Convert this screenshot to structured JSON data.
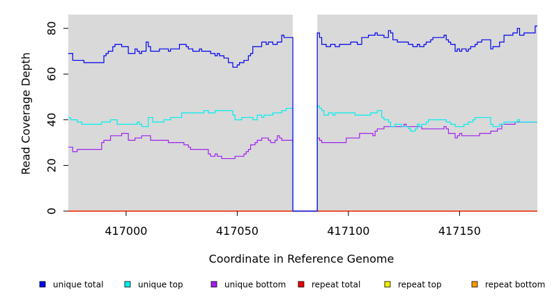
{
  "chart_data": {
    "type": "line",
    "title": "",
    "xlabel": "Coordinate in Reference Genome",
    "ylabel": "Read Coverage Depth",
    "xlim": [
      416974,
      417185
    ],
    "ylim": [
      0,
      86
    ],
    "xticks": [
      417000,
      417050,
      417100,
      417150
    ],
    "yticks": [
      0,
      20,
      40,
      60,
      80
    ],
    "x_tick_labels": [
      "417000",
      "417050",
      "417100",
      "417150"
    ],
    "y_tick_labels": [
      "0",
      "20",
      "40",
      "60",
      "80"
    ],
    "gap": [
      417075,
      417086
    ],
    "grid": false,
    "legend_position": "bottom",
    "background": "#d9d9d9",
    "series": [
      {
        "name": "unique total",
        "color": "#0000ee",
        "points": [
          [
            416974,
            69
          ],
          [
            416976,
            66
          ],
          [
            416981,
            65
          ],
          [
            416990,
            68
          ],
          [
            416991,
            69
          ],
          [
            416992,
            70
          ],
          [
            416994,
            72
          ],
          [
            416995,
            73
          ],
          [
            416998,
            72
          ],
          [
            417001,
            69
          ],
          [
            417004,
            71
          ],
          [
            417005,
            70
          ],
          [
            417006,
            69
          ],
          [
            417007,
            70
          ],
          [
            417009,
            74
          ],
          [
            417010,
            72
          ],
          [
            417011,
            70
          ],
          [
            417015,
            71
          ],
          [
            417019,
            70
          ],
          [
            417020,
            71
          ],
          [
            417024,
            73
          ],
          [
            417027,
            72
          ],
          [
            417028,
            71
          ],
          [
            417030,
            70
          ],
          [
            417033,
            71
          ],
          [
            417034,
            70
          ],
          [
            417038,
            69
          ],
          [
            417040,
            68
          ],
          [
            417041,
            69
          ],
          [
            417042,
            68
          ],
          [
            417044,
            67
          ],
          [
            417046,
            65
          ],
          [
            417048,
            63
          ],
          [
            417050,
            64
          ],
          [
            417051,
            65
          ],
          [
            417053,
            66
          ],
          [
            417055,
            68
          ],
          [
            417056,
            69
          ],
          [
            417057,
            72
          ],
          [
            417061,
            74
          ],
          [
            417063,
            73
          ],
          [
            417064,
            74
          ],
          [
            417066,
            73
          ],
          [
            417068,
            74
          ],
          [
            417070,
            77
          ],
          [
            417071,
            76
          ],
          [
            417072,
            76
          ],
          [
            417075,
            0
          ],
          [
            417086,
            78
          ],
          [
            417087,
            76
          ],
          [
            417088,
            73
          ],
          [
            417090,
            72
          ],
          [
            417092,
            73
          ],
          [
            417094,
            72
          ],
          [
            417096,
            73
          ],
          [
            417101,
            74
          ],
          [
            417104,
            73
          ],
          [
            417106,
            76
          ],
          [
            417109,
            77
          ],
          [
            417112,
            78
          ],
          [
            417113,
            77
          ],
          [
            417115,
            77
          ],
          [
            417116,
            76
          ],
          [
            417118,
            79
          ],
          [
            417119,
            78
          ],
          [
            417120,
            75
          ],
          [
            417122,
            74
          ],
          [
            417127,
            73
          ],
          [
            417129,
            72
          ],
          [
            417131,
            73
          ],
          [
            417132,
            72
          ],
          [
            417134,
            73
          ],
          [
            417135,
            74
          ],
          [
            417137,
            75
          ],
          [
            417138,
            76
          ],
          [
            417143,
            77
          ],
          [
            417144,
            75
          ],
          [
            417145,
            74
          ],
          [
            417146,
            73
          ],
          [
            417148,
            70
          ],
          [
            417149,
            71
          ],
          [
            417150,
            70
          ],
          [
            417151,
            71
          ],
          [
            417153,
            70
          ],
          [
            417154,
            71
          ],
          [
            417155,
            72
          ],
          [
            417157,
            73
          ],
          [
            417158,
            74
          ],
          [
            417160,
            75
          ],
          [
            417164,
            71
          ],
          [
            417165,
            72
          ],
          [
            417168,
            74
          ],
          [
            417170,
            77
          ],
          [
            417174,
            78
          ],
          [
            417176,
            80
          ],
          [
            417177,
            77
          ],
          [
            417179,
            78
          ],
          [
            417184,
            81
          ]
        ]
      },
      {
        "name": "unique top",
        "color": "#00eeee",
        "points": [
          [
            416974,
            41
          ],
          [
            416975,
            40
          ],
          [
            416977,
            40
          ],
          [
            416978,
            39
          ],
          [
            416980,
            38
          ],
          [
            416989,
            39
          ],
          [
            416993,
            40
          ],
          [
            416996,
            38
          ],
          [
            417000,
            38
          ],
          [
            417005,
            39
          ],
          [
            417006,
            38
          ],
          [
            417007,
            37
          ],
          [
            417010,
            41
          ],
          [
            417012,
            39
          ],
          [
            417017,
            40
          ],
          [
            417020,
            41
          ],
          [
            417025,
            43
          ],
          [
            417035,
            44
          ],
          [
            417037,
            43
          ],
          [
            417040,
            44
          ],
          [
            417048,
            42
          ],
          [
            417049,
            40
          ],
          [
            417052,
            41
          ],
          [
            417057,
            40
          ],
          [
            417059,
            42
          ],
          [
            417061,
            41
          ],
          [
            417062,
            42
          ],
          [
            417066,
            43
          ],
          [
            417070,
            44
          ],
          [
            417072,
            45
          ],
          [
            417075,
            0
          ],
          [
            417086,
            46
          ],
          [
            417087,
            45
          ],
          [
            417088,
            44
          ],
          [
            417089,
            42
          ],
          [
            417091,
            43
          ],
          [
            417093,
            42
          ],
          [
            417094,
            43
          ],
          [
            417103,
            42
          ],
          [
            417110,
            43
          ],
          [
            417113,
            44
          ],
          [
            417115,
            41
          ],
          [
            417116,
            40
          ],
          [
            417118,
            39
          ],
          [
            417119,
            37
          ],
          [
            417121,
            38
          ],
          [
            417124,
            37
          ],
          [
            417127,
            36
          ],
          [
            417128,
            35
          ],
          [
            417130,
            36
          ],
          [
            417131,
            38
          ],
          [
            417132,
            37
          ],
          [
            417133,
            38
          ],
          [
            417135,
            39
          ],
          [
            417136,
            40
          ],
          [
            417144,
            39
          ],
          [
            417146,
            38
          ],
          [
            417148,
            37
          ],
          [
            417152,
            38
          ],
          [
            417154,
            39
          ],
          [
            417156,
            40
          ],
          [
            417157,
            41
          ],
          [
            417164,
            38
          ],
          [
            417165,
            37
          ],
          [
            417168,
            38
          ],
          [
            417170,
            39
          ],
          [
            417176,
            40
          ],
          [
            417177,
            39
          ],
          [
            417184,
            39
          ]
        ]
      },
      {
        "name": "unique bottom",
        "color": "#a020f0",
        "points": [
          [
            416974,
            28
          ],
          [
            416976,
            26
          ],
          [
            416978,
            27
          ],
          [
            416989,
            30
          ],
          [
            416990,
            31
          ],
          [
            416993,
            33
          ],
          [
            416998,
            34
          ],
          [
            417001,
            31
          ],
          [
            417004,
            32
          ],
          [
            417007,
            33
          ],
          [
            417011,
            31
          ],
          [
            417016,
            31
          ],
          [
            417019,
            30
          ],
          [
            417026,
            29
          ],
          [
            417028,
            28
          ],
          [
            417029,
            27
          ],
          [
            417037,
            25
          ],
          [
            417038,
            24
          ],
          [
            417040,
            25
          ],
          [
            417041,
            24
          ],
          [
            417043,
            23
          ],
          [
            417049,
            24
          ],
          [
            417053,
            25
          ],
          [
            417054,
            26
          ],
          [
            417055,
            27
          ],
          [
            417056,
            29
          ],
          [
            417058,
            30
          ],
          [
            417059,
            31
          ],
          [
            417061,
            32
          ],
          [
            417064,
            31
          ],
          [
            417065,
            30
          ],
          [
            417067,
            31
          ],
          [
            417068,
            33
          ],
          [
            417069,
            32
          ],
          [
            417070,
            31
          ],
          [
            417072,
            31
          ],
          [
            417075,
            0
          ],
          [
            417086,
            32
          ],
          [
            417087,
            31
          ],
          [
            417088,
            30
          ],
          [
            417099,
            32
          ],
          [
            417105,
            34
          ],
          [
            417111,
            33
          ],
          [
            417112,
            35
          ],
          [
            417113,
            36
          ],
          [
            417116,
            37
          ],
          [
            417124,
            37
          ],
          [
            417125,
            38
          ],
          [
            417126,
            37
          ],
          [
            417133,
            36
          ],
          [
            417143,
            37
          ],
          [
            417144,
            36
          ],
          [
            417145,
            34
          ],
          [
            417148,
            32
          ],
          [
            417149,
            33
          ],
          [
            417150,
            34
          ],
          [
            417151,
            33
          ],
          [
            417155,
            33
          ],
          [
            417159,
            34
          ],
          [
            417164,
            35
          ],
          [
            417167,
            36
          ],
          [
            417169,
            38
          ],
          [
            417173,
            38
          ],
          [
            417175,
            39
          ],
          [
            417184,
            39
          ]
        ]
      },
      {
        "name": "repeat total",
        "color": "#ee0000",
        "points": [
          [
            416974,
            0
          ],
          [
            417184,
            0
          ]
        ]
      },
      {
        "name": "repeat top",
        "color": "#eeee00",
        "points": [
          [
            416974,
            0
          ],
          [
            417184,
            0
          ]
        ]
      },
      {
        "name": "repeat bottom",
        "color": "#ff9900",
        "points": [
          [
            416974,
            0
          ],
          [
            417184,
            0
          ]
        ]
      }
    ]
  }
}
